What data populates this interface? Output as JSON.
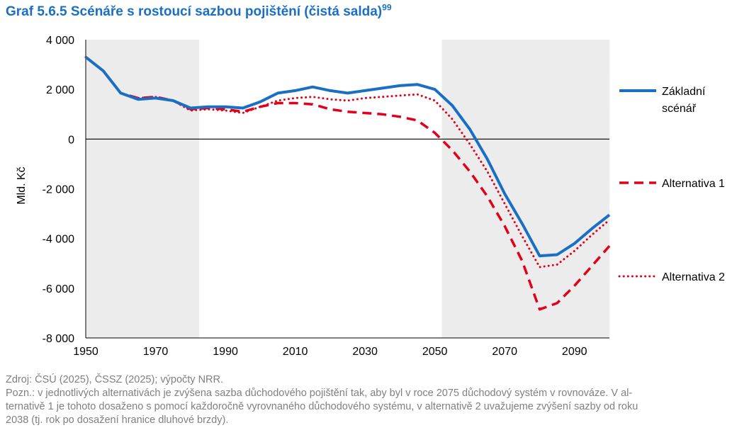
{
  "title": {
    "text": "Graf 5.6.5 Scénáře s rostoucí sazbou pojištění (čistá salda)",
    "footnote": "99"
  },
  "chart_data": {
    "type": "line",
    "xlim": [
      1950,
      2100
    ],
    "ylim": [
      -8000,
      4000
    ],
    "ylabel": "Mld. Kč",
    "xticks": [
      1950,
      1970,
      1990,
      2010,
      2030,
      2050,
      2070,
      2090
    ],
    "xtick_labels": [
      "1950",
      "1970",
      "1990",
      "2010",
      "2030",
      "2050",
      "2070",
      "2090"
    ],
    "yticks": [
      4000,
      2000,
      0,
      -2000,
      -4000,
      -6000,
      -8000
    ],
    "ytick_labels": [
      "4 000",
      "2 000",
      "0",
      "-2 000",
      "-4 000",
      "-6 000",
      "-8 000"
    ],
    "shaded_ranges": [
      [
        1950,
        1982.5
      ],
      [
        2052,
        2100
      ]
    ],
    "zero_line": true,
    "series": [
      {
        "name": "Základní scénář",
        "legend_lines": [
          "Základní",
          "scénář"
        ],
        "style": "solid",
        "color": "#1a6fc4",
        "x": [
          1950,
          1955,
          1960,
          1965,
          1970,
          1975,
          1980,
          1985,
          1990,
          1995,
          2000,
          2005,
          2010,
          2015,
          2020,
          2025,
          2030,
          2035,
          2040,
          2045,
          2050,
          2055,
          2060,
          2065,
          2070,
          2075,
          2080,
          2085,
          2090,
          2095,
          2100
        ],
        "values": [
          3300,
          2750,
          1850,
          1600,
          1650,
          1550,
          1250,
          1300,
          1300,
          1250,
          1500,
          1850,
          1950,
          2100,
          1950,
          1850,
          1950,
          2050,
          2150,
          2200,
          2000,
          1350,
          400,
          -800,
          -2200,
          -3400,
          -4700,
          -4650,
          -4200,
          -3600,
          -3050
        ]
      },
      {
        "name": "Alternativa 1",
        "legend_lines": [
          "Alternativa 1"
        ],
        "style": "dashed",
        "color": "#e2001a",
        "x": [
          1950,
          1955,
          1960,
          1965,
          1970,
          1975,
          1980,
          1985,
          1990,
          1995,
          2000,
          2005,
          2010,
          2015,
          2020,
          2025,
          2030,
          2035,
          2040,
          2045,
          2050,
          2055,
          2060,
          2065,
          2070,
          2075,
          2080,
          2085,
          2090,
          2095,
          2100
        ],
        "values": [
          3300,
          2750,
          1850,
          1650,
          1700,
          1550,
          1200,
          1250,
          1200,
          1100,
          1300,
          1450,
          1450,
          1400,
          1200,
          1100,
          1050,
          1000,
          900,
          750,
          250,
          -450,
          -1300,
          -2300,
          -3500,
          -4900,
          -6850,
          -6600,
          -5900,
          -5100,
          -4300
        ]
      },
      {
        "name": "Alternativa 2",
        "legend_lines": [
          "Alternativa 2"
        ],
        "style": "dotted",
        "color": "#e2001a",
        "x": [
          1950,
          1955,
          1960,
          1965,
          1970,
          1975,
          1980,
          1985,
          1990,
          1995,
          2000,
          2005,
          2010,
          2015,
          2020,
          2025,
          2030,
          2035,
          2040,
          2045,
          2050,
          2055,
          2060,
          2065,
          2070,
          2075,
          2080,
          2085,
          2090,
          2095,
          2100
        ],
        "values": [
          3300,
          2750,
          1850,
          1650,
          1700,
          1550,
          1150,
          1200,
          1150,
          1050,
          1300,
          1550,
          1650,
          1700,
          1600,
          1550,
          1650,
          1700,
          1750,
          1800,
          1550,
          800,
          -200,
          -1300,
          -2600,
          -3900,
          -5150,
          -5050,
          -4500,
          -3850,
          -3250
        ]
      }
    ]
  },
  "notes": {
    "source": "Zdroj: ČSÚ (2025), ČSSZ (2025); výpočty NRR.",
    "note_lines": [
      "Pozn.: v jednotlivých alternativách je zvýšena sazba důchodového pojištění tak, aby byl v roce 2075 důchodový systém v rovnováze. V al-",
      "ternativě 1 je tohoto dosaženo s pomocí každoročně vyrovnaného důchodového systému, v alternativě 2 uvažujeme zvýšení sazby od roku",
      "2038 (tj. rok po dosažení hranice dluhové brzdy)."
    ]
  }
}
